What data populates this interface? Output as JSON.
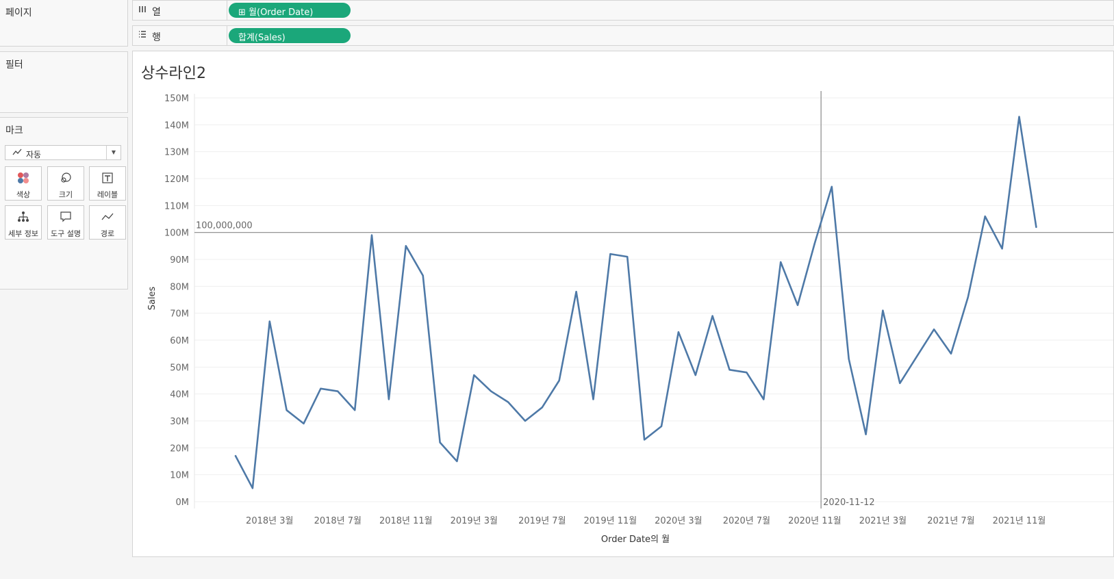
{
  "sidebar": {
    "pages_label": "페이지",
    "filters_label": "필터",
    "marks_label": "마크",
    "mark_type": "자동",
    "mark_cards": [
      {
        "label": "색상",
        "icon": "color-icon"
      },
      {
        "label": "크기",
        "icon": "size-icon"
      },
      {
        "label": "레이블",
        "icon": "label-icon"
      },
      {
        "label": "세부 정보",
        "icon": "detail-icon"
      },
      {
        "label": "도구 설명",
        "icon": "tooltip-icon"
      },
      {
        "label": "경로",
        "icon": "path-icon"
      }
    ]
  },
  "shelves": {
    "columns": {
      "label": "열",
      "pill": "월(Order Date)"
    },
    "rows": {
      "label": "행",
      "pill": "합계(Sales)"
    }
  },
  "sheet": {
    "title": "상수라인2"
  },
  "colors": {
    "line": "#4e79a7",
    "pill": "#1ba77a",
    "reference": "#888888"
  },
  "chart_data": {
    "type": "line",
    "title": "상수라인2",
    "xlabel": "Order Date의 월",
    "ylabel": "Sales",
    "ylim": [
      0,
      150000000
    ],
    "y_ticks": [
      "0M",
      "10M",
      "20M",
      "30M",
      "40M",
      "50M",
      "60M",
      "70M",
      "80M",
      "90M",
      "100M",
      "110M",
      "120M",
      "130M",
      "140M",
      "150M"
    ],
    "x_tick_labels": [
      "2018년 3월",
      "2018년 7월",
      "2018년 11월",
      "2019년 3월",
      "2019년 7월",
      "2019년 11월",
      "2020년 3월",
      "2020년 7월",
      "2020년 11월",
      "2021년 3월",
      "2021년 7월",
      "2021년 11월"
    ],
    "x_tick_index": [
      2,
      6,
      10,
      14,
      18,
      22,
      26,
      30,
      34,
      38,
      42,
      46
    ],
    "months": [
      "2018-01",
      "2018-02",
      "2018-03",
      "2018-04",
      "2018-05",
      "2018-06",
      "2018-07",
      "2018-08",
      "2018-09",
      "2018-10",
      "2018-11",
      "2018-12",
      "2019-01",
      "2019-02",
      "2019-03",
      "2019-04",
      "2019-05",
      "2019-06",
      "2019-07",
      "2019-08",
      "2019-09",
      "2019-10",
      "2019-11",
      "2019-12",
      "2020-01",
      "2020-02",
      "2020-03",
      "2020-04",
      "2020-05",
      "2020-06",
      "2020-07",
      "2020-08",
      "2020-09",
      "2020-10",
      "2020-11",
      "2020-12",
      "2021-01",
      "2021-02",
      "2021-03",
      "2021-04",
      "2021-05",
      "2021-06",
      "2021-07",
      "2021-08",
      "2021-09",
      "2021-10",
      "2021-11",
      "2021-12"
    ],
    "values": [
      17000000,
      5000000,
      67000000,
      34000000,
      29000000,
      42000000,
      41000000,
      34000000,
      99000000,
      38000000,
      95000000,
      84000000,
      22000000,
      15000000,
      47000000,
      41000000,
      37000000,
      30000000,
      35000000,
      45000000,
      78000000,
      38000000,
      92000000,
      91000000,
      23000000,
      28000000,
      63000000,
      47000000,
      69000000,
      49000000,
      48000000,
      38000000,
      89000000,
      73000000,
      96000000,
      117000000,
      53000000,
      25000000,
      71000000,
      44000000,
      54000000,
      64000000,
      55000000,
      76000000,
      106000000,
      94000000,
      143000000,
      102000000
    ],
    "reference_lines": [
      {
        "axis": "y",
        "value": 100000000,
        "label": "100,000,000"
      },
      {
        "axis": "x",
        "value": "2020-11-12",
        "label": "2020-11-12",
        "month_pos": 34.37
      }
    ],
    "grid": true
  }
}
